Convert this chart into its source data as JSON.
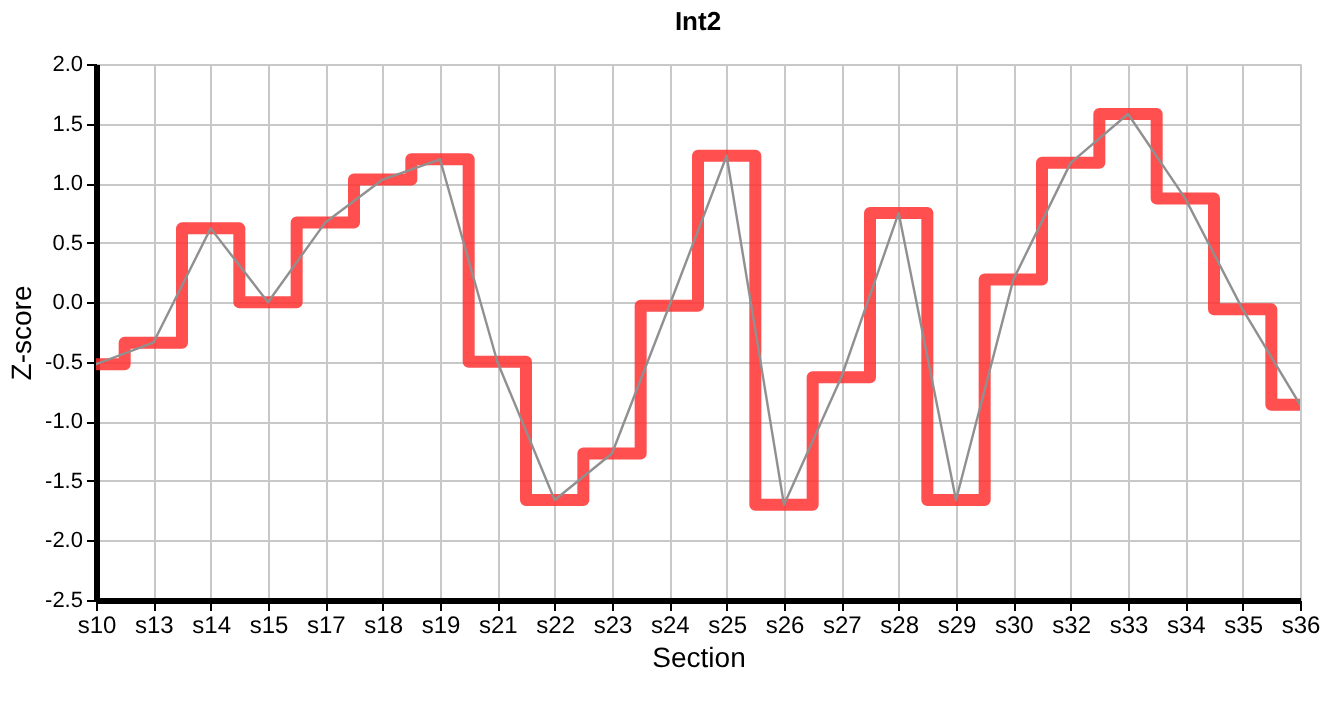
{
  "chart_data": {
    "type": "step",
    "title": "Int2",
    "xlabel": "Section",
    "ylabel": "Z-score",
    "categories": [
      "s10",
      "s13",
      "s14",
      "s15",
      "s17",
      "s18",
      "s19",
      "s21",
      "s22",
      "s23",
      "s24",
      "s25",
      "s26",
      "s27",
      "s28",
      "s29",
      "s30",
      "s32",
      "s33",
      "s34",
      "s35",
      "s36"
    ],
    "series": [
      {
        "color": "#ff3030",
        "values": [
          -0.52,
          -0.34,
          0.62,
          0.0,
          0.67,
          1.03,
          1.2,
          -0.5,
          -1.66,
          -1.27,
          -0.03,
          1.23,
          -1.7,
          -0.63,
          0.75,
          -1.66,
          0.19,
          1.17,
          1.58,
          0.87,
          -0.06,
          -0.86
        ]
      },
      {
        "type": "line",
        "color": "#909090",
        "values": [
          -0.52,
          -0.34,
          0.62,
          0.0,
          0.67,
          1.03,
          1.2,
          -0.5,
          -1.66,
          -1.27,
          -0.03,
          1.23,
          -1.7,
          -0.63,
          0.75,
          -1.66,
          0.19,
          1.17,
          1.58,
          0.87,
          -0.06,
          -0.86
        ]
      }
    ],
    "ylim": [
      -2.5,
      2.0
    ],
    "yticks": [
      {
        "value": -2.5,
        "label": "-2.5"
      },
      {
        "value": -2.0,
        "label": "-2.0"
      },
      {
        "value": -1.5,
        "label": "-1.5"
      },
      {
        "value": -1.0,
        "label": "-1.0"
      },
      {
        "value": -0.5,
        "label": "-0.5"
      },
      {
        "value": 0.0,
        "label": "0.0"
      },
      {
        "value": 0.5,
        "label": "0.5"
      },
      {
        "value": 1.0,
        "label": "1.0"
      },
      {
        "value": 1.5,
        "label": "1.5"
      },
      {
        "value": 2.0,
        "label": "2.0"
      }
    ],
    "grid": true
  }
}
